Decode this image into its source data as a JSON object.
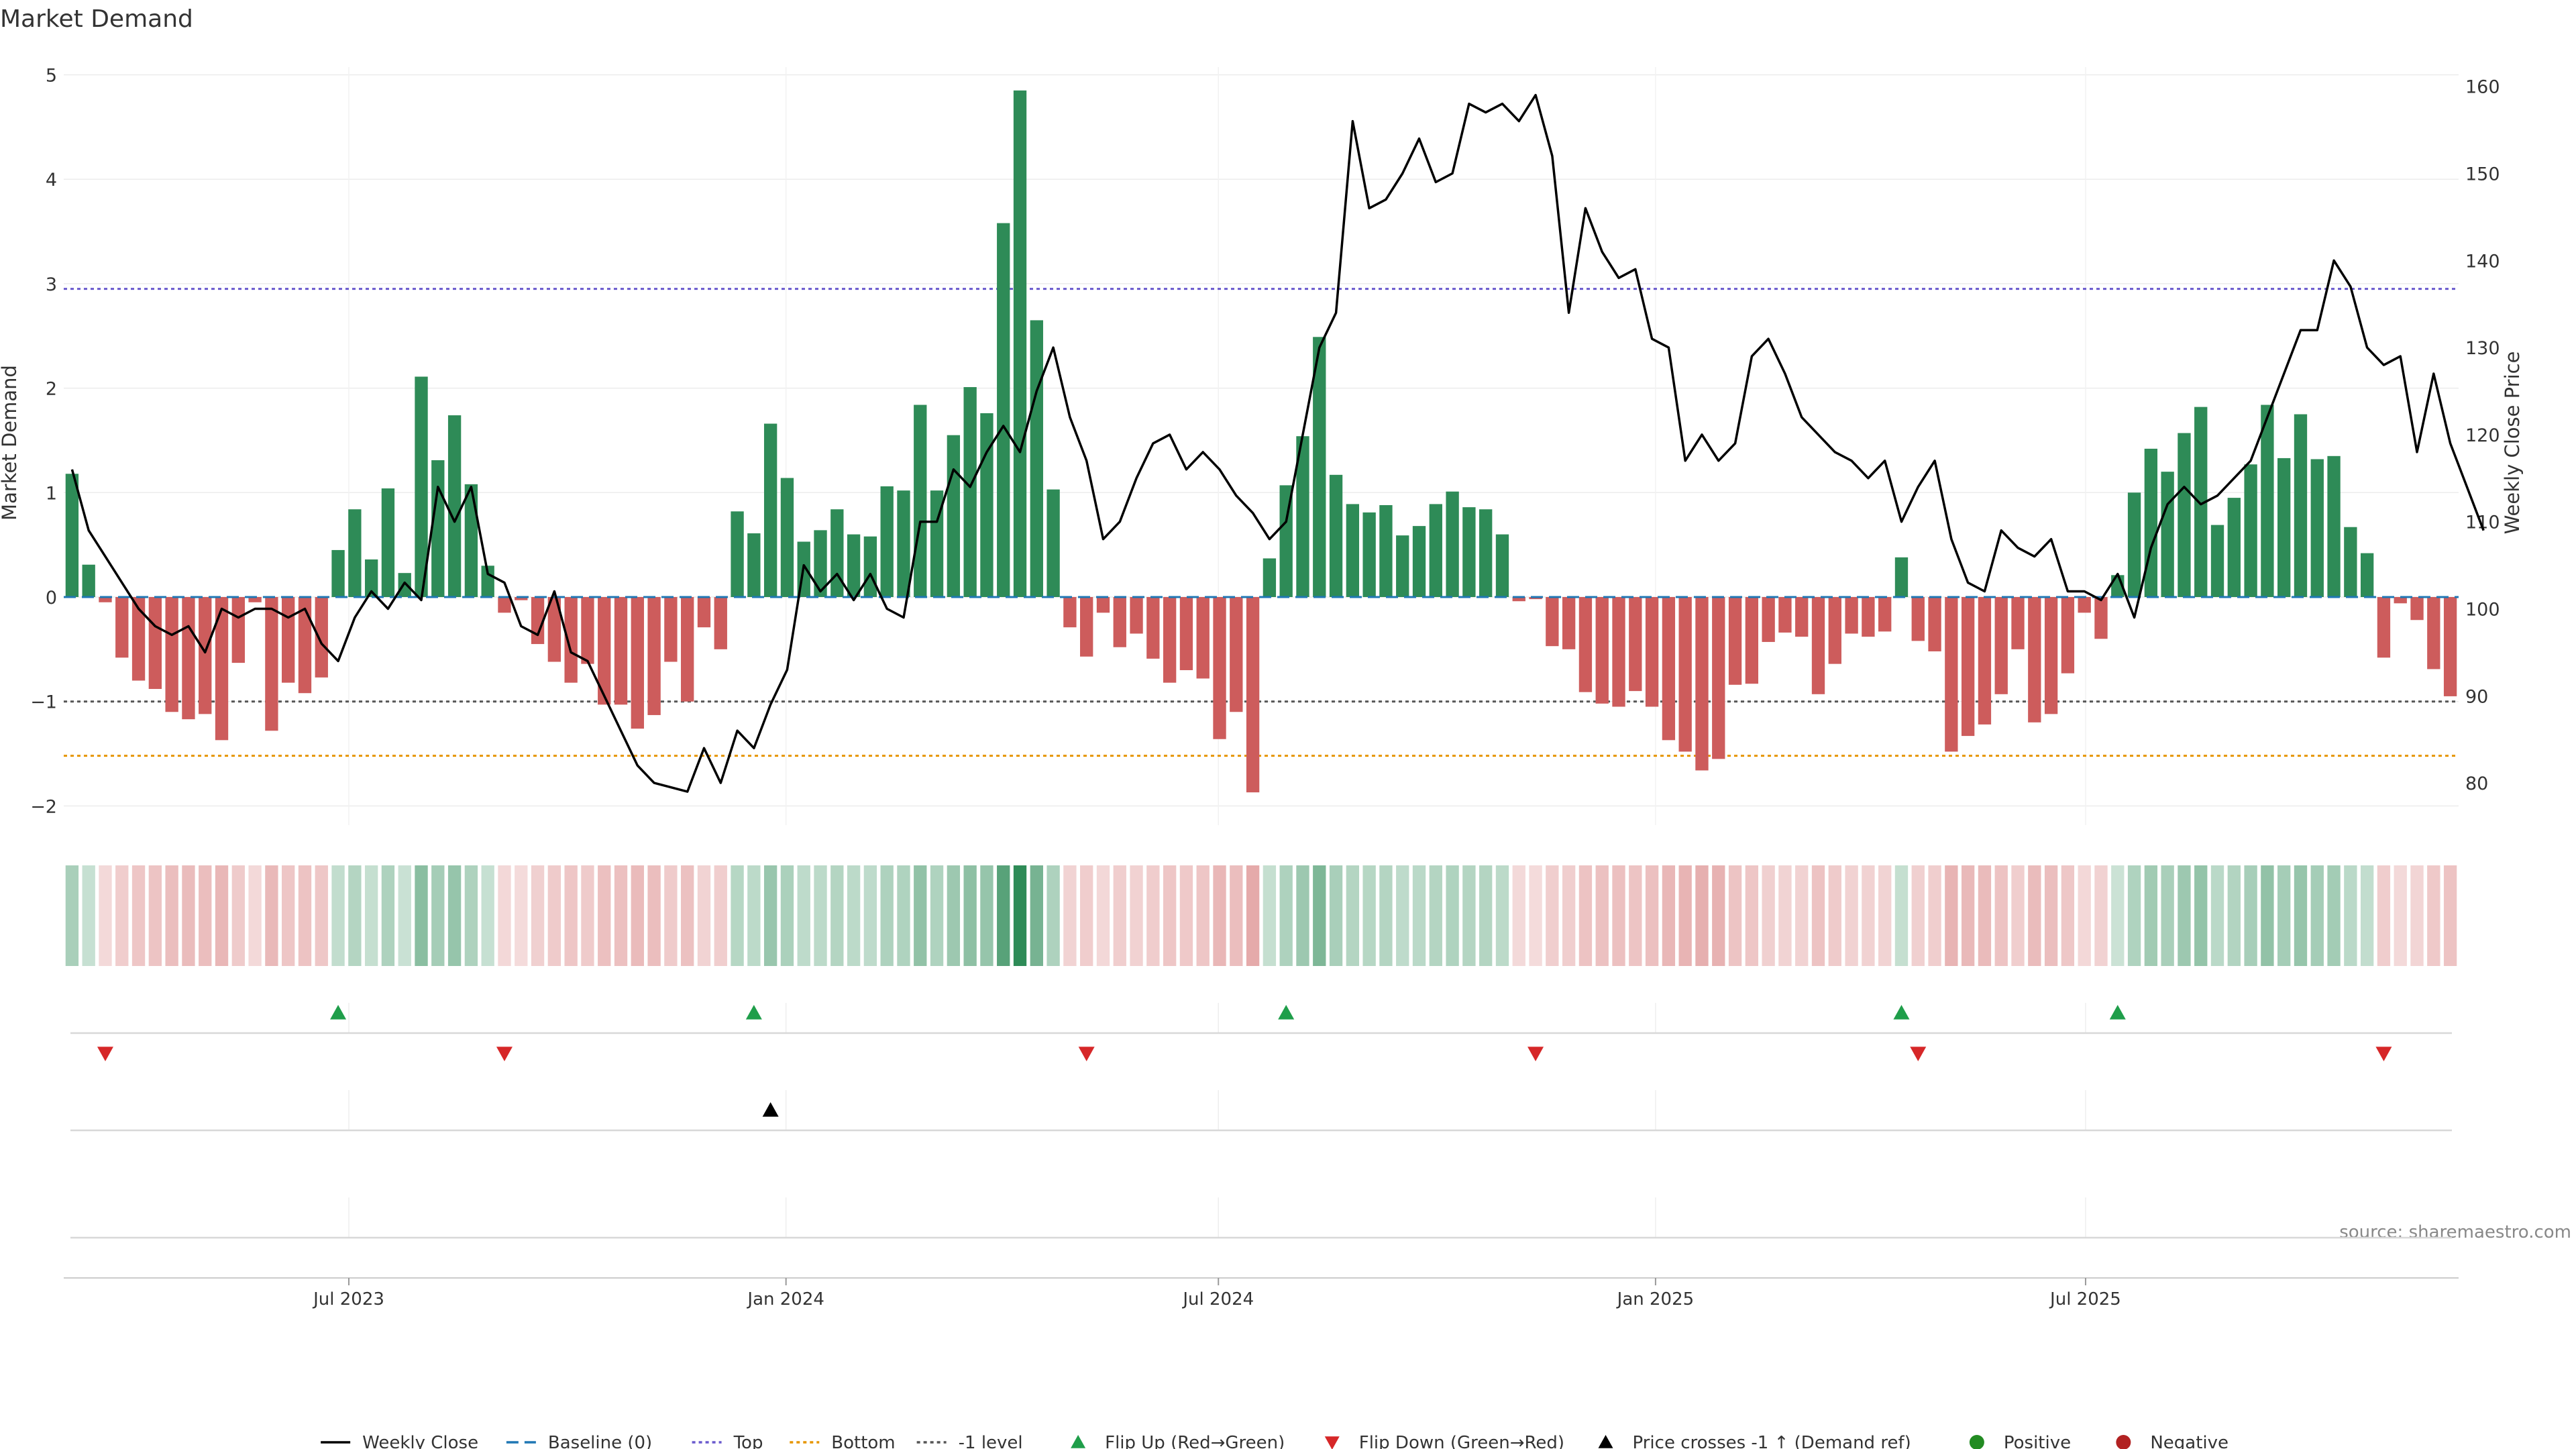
{
  "colors": {
    "positive": "#2e8b57",
    "negative": "#cd5c5c",
    "close": "#000000",
    "top": "#6a5acd",
    "bottom": "#e69500",
    "minus_one": "#555555",
    "baseline": "#1f77b4",
    "flip_up": "#1f9e4a",
    "flip_down": "#d62728",
    "positive_dot": "#228b22",
    "negative_dot": "#b22222"
  },
  "chart_data": {
    "type": "bar",
    "title": "Market Demand",
    "ylabel_left": "Market Demand",
    "ylabel_right": "Weekly Close Price",
    "source": "source: sharemaestro.com",
    "x_start": "2023-03-03",
    "x_ticks": [
      "Jul 2023",
      "Jan 2024",
      "Jul 2024",
      "Jan 2025",
      "Jul 2025"
    ],
    "y_left_ticks": [
      "5",
      "4",
      "3",
      "2",
      "1",
      "0",
      "−1",
      "−2"
    ],
    "y_left_range": [
      -2.2,
      5.1
    ],
    "y_right_ticks": [
      "160",
      "150",
      "140",
      "130",
      "120",
      "110",
      "100",
      "90",
      "80"
    ],
    "y_right_range": [
      77.3,
      160.9
    ],
    "levels": {
      "top": 2.95,
      "bottom": -1.52,
      "minus_one": -1.0,
      "baseline": 0
    },
    "demand": [
      1.18,
      0.31,
      -0.05,
      -0.58,
      -0.8,
      -0.88,
      -1.1,
      -1.17,
      -1.12,
      -1.37,
      -0.63,
      -0.05,
      -1.28,
      -0.82,
      -0.92,
      -0.77,
      0.45,
      0.84,
      0.36,
      1.04,
      0.23,
      2.11,
      1.31,
      1.74,
      1.08,
      0.3,
      -0.15,
      -0.03,
      -0.45,
      -0.62,
      -0.82,
      -0.64,
      -1.03,
      -1.03,
      -1.26,
      -1.13,
      -0.62,
      -1.0,
      -0.29,
      -0.5,
      0.82,
      0.61,
      1.66,
      1.14,
      0.53,
      0.64,
      0.84,
      0.6,
      0.58,
      1.06,
      1.02,
      1.84,
      1.02,
      1.55,
      2.01,
      1.76,
      3.58,
      4.85,
      2.65,
      1.03,
      -0.29,
      -0.57,
      -0.15,
      -0.48,
      -0.35,
      -0.59,
      -0.82,
      -0.7,
      -0.78,
      -1.36,
      -1.1,
      -1.87,
      0.37,
      1.07,
      1.54,
      2.49,
      1.17,
      0.89,
      0.81,
      0.88,
      0.59,
      0.68,
      0.89,
      1.01,
      0.86,
      0.84,
      0.6,
      -0.04,
      -0.02,
      -0.47,
      -0.5,
      -0.91,
      -1.02,
      -1.05,
      -0.9,
      -1.05,
      -1.37,
      -1.48,
      -1.66,
      -1.55,
      -0.84,
      -0.83,
      -0.43,
      -0.34,
      -0.38,
      -0.93,
      -0.64,
      -0.35,
      -0.38,
      -0.33,
      0.38,
      -0.42,
      -0.52,
      -1.48,
      -1.33,
      -1.22,
      -0.93,
      -0.5,
      -1.2,
      -1.12,
      -0.73,
      -0.15,
      -0.4,
      0.21,
      1.0,
      1.42,
      1.2,
      1.57,
      1.82,
      0.69,
      0.95,
      1.27,
      1.84,
      1.33,
      1.75,
      1.32,
      1.35,
      0.67,
      0.42,
      -0.58,
      -0.06,
      -0.22,
      -0.69,
      -0.95
    ],
    "close": [
      116,
      109,
      106,
      103,
      100,
      98,
      97,
      98,
      95,
      100,
      99,
      100,
      100,
      99,
      100,
      96,
      94,
      99,
      102,
      100,
      103,
      101,
      114,
      110,
      114,
      104,
      103,
      98,
      97,
      102,
      95,
      94,
      90,
      86,
      82,
      80,
      79.5,
      79,
      84,
      80,
      86,
      84,
      89,
      93,
      105,
      102,
      104,
      101,
      104,
      100,
      99,
      110,
      110,
      116,
      114,
      118,
      121,
      118,
      125,
      130,
      122,
      117,
      108,
      110,
      115,
      119,
      120,
      116,
      118,
      116,
      113,
      111,
      108,
      110,
      120,
      130,
      134,
      156,
      146,
      147,
      150,
      154,
      149,
      150,
      158,
      157,
      158,
      156,
      159,
      152,
      134,
      146,
      141,
      138,
      139,
      131,
      130,
      117,
      120,
      117,
      119,
      129,
      131,
      127,
      122,
      120,
      118,
      117,
      115,
      117,
      110,
      114,
      117,
      108,
      103,
      102,
      109,
      107,
      106,
      108,
      102,
      102,
      101,
      104,
      99,
      107,
      112,
      114,
      112,
      113,
      115,
      117,
      122,
      127,
      132,
      132,
      140,
      137,
      130,
      128,
      129,
      118,
      127,
      119,
      114,
      109
    ],
    "flip_up_weeks": [
      16,
      41,
      73,
      110,
      123
    ],
    "flip_down_weeks": [
      2,
      26,
      61,
      88,
      111,
      139
    ],
    "price_cross_weeks": [
      42
    ]
  },
  "legend": [
    {
      "label": "Weekly Close",
      "kind": "line",
      "color": "#000000",
      "dash": ""
    },
    {
      "label": "Baseline (0)",
      "kind": "line",
      "color": "#1f77b4",
      "dash": "18,9"
    },
    {
      "label": "Top",
      "kind": "line",
      "color": "#6a5acd",
      "dash": "5,5"
    },
    {
      "label": "Bottom",
      "kind": "line",
      "color": "#e69500",
      "dash": "5,5"
    },
    {
      "label": "-1 level",
      "kind": "line",
      "color": "#555555",
      "dash": "5,5"
    },
    {
      "label": "Flip Up (Red→Green)",
      "kind": "tri-up",
      "color": "#1f9e4a"
    },
    {
      "label": "Flip Down (Green→Red)",
      "kind": "tri-down",
      "color": "#d62728"
    },
    {
      "label": "Price crosses -1 ↑ (Demand ref)",
      "kind": "tri-up",
      "color": "#000000"
    },
    {
      "label": "Positive",
      "kind": "dot",
      "color": "#228b22"
    },
    {
      "label": "Negative",
      "kind": "dot",
      "color": "#b22222"
    }
  ]
}
